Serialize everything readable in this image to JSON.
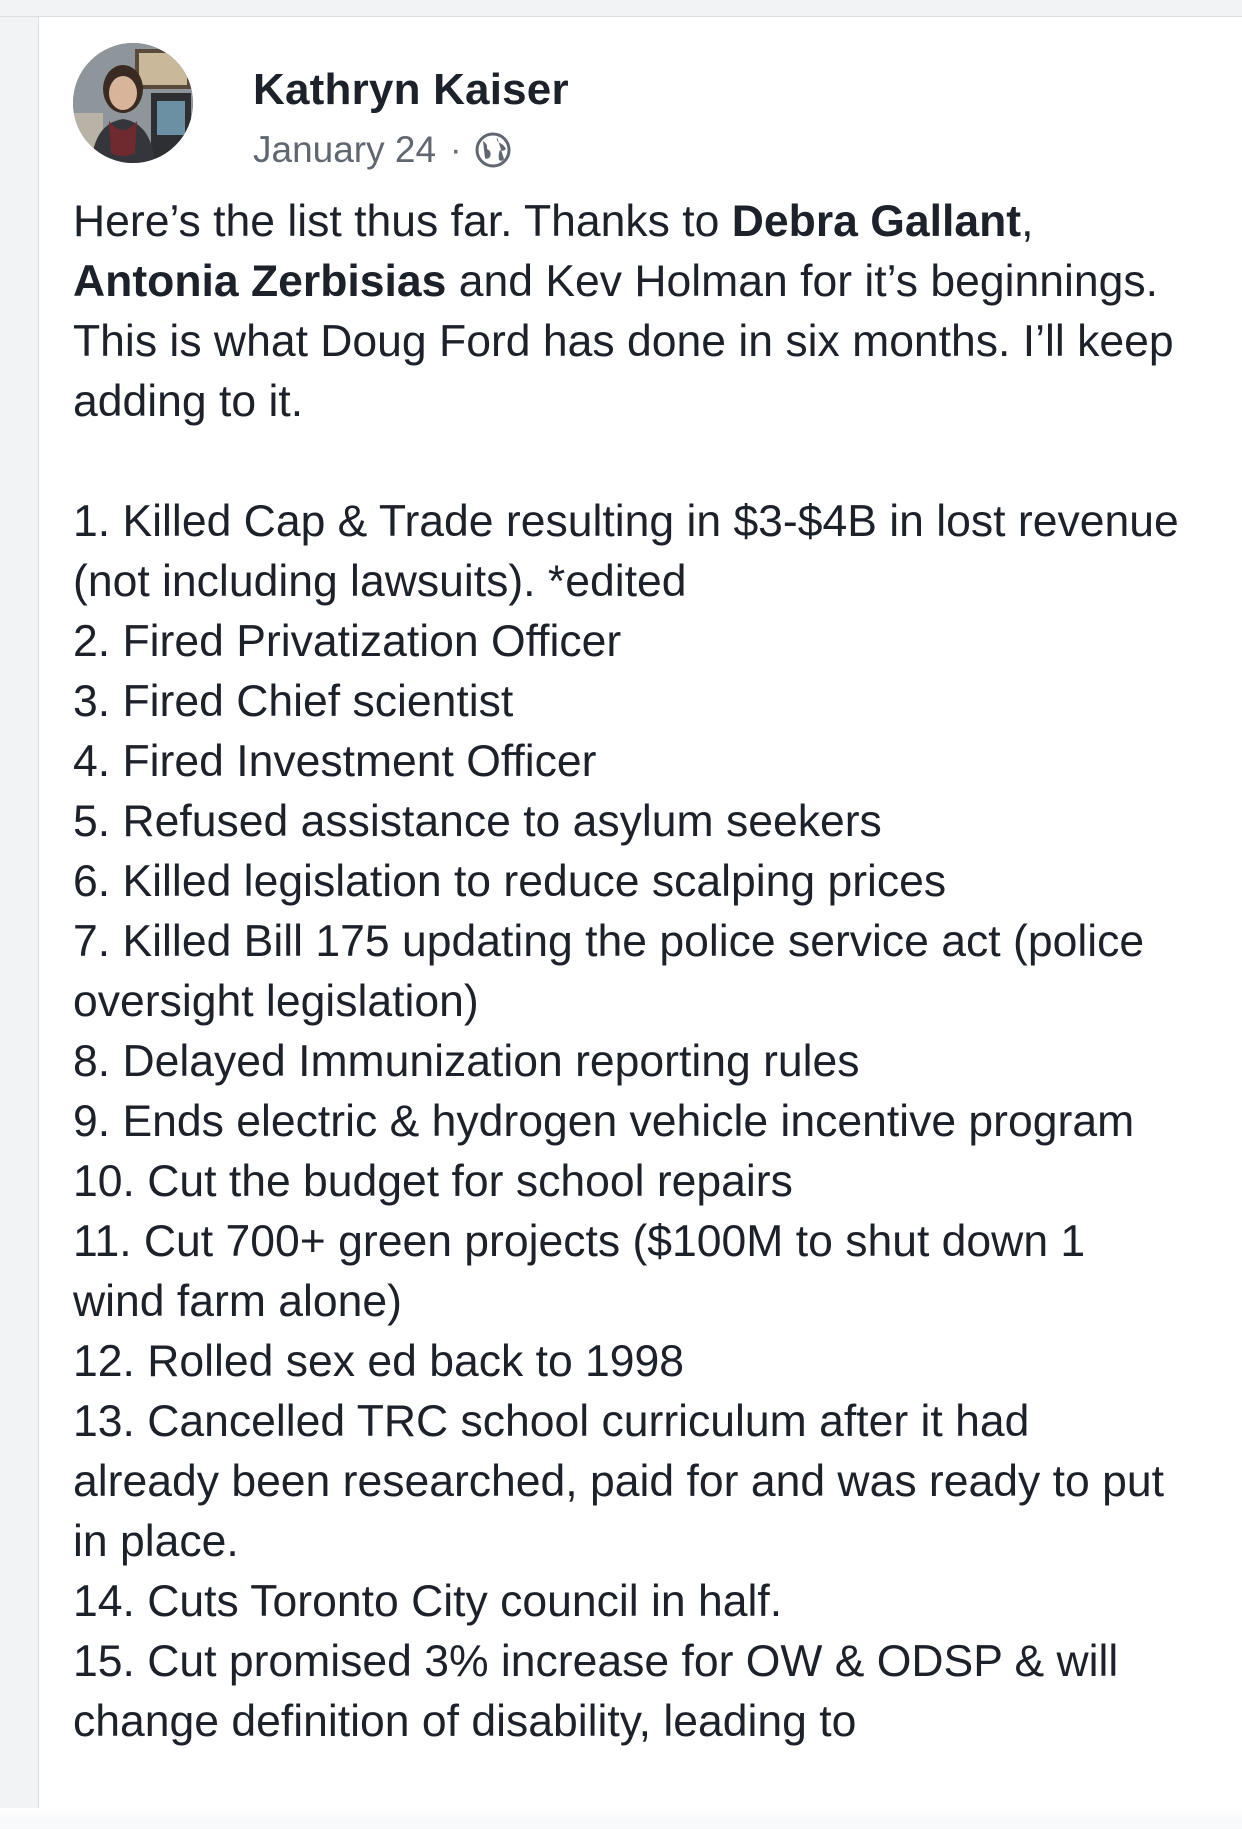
{
  "post": {
    "author": "Kathryn Kaiser",
    "date": "January 24",
    "separator": "·",
    "privacy_icon": "globe-icon",
    "intro": {
      "t1": "Here’s the list thus far.  Thanks to ",
      "name1": "Debra Gallant",
      "t2": ", ",
      "name2": "Antonia Zerbisias",
      "t3": " and Kev Holman for it’s beginnings. This is what Doug Ford has done in six months. I’ll keep adding to it."
    },
    "items": [
      "1. Killed Cap & Trade resulting in $3-$4B in lost revenue (not including lawsuits). *edited",
      "2. Fired Privatization Officer",
      "3. Fired Chief scientist",
      "4. Fired Investment Officer",
      "5. Refused assistance to asylum seekers",
      "6. Killed legislation to reduce scalping prices",
      "7. Killed Bill 175 updating the police service act (police oversight legislation)",
      "8. Delayed Immunization reporting rules",
      "9. Ends electric & hydrogen vehicle incentive program",
      "10. Cut the budget for school repairs",
      "11. Cut 700+ green projects ($100M to shut down 1 wind farm alone)",
      "12. Rolled sex ed back to 1998",
      "13. Cancelled TRC school curriculum after it had already been researched, paid for and was ready to put in place.",
      "14. Cuts Toronto City council in half.",
      "15. Cut promised 3% increase for OW & ODSP & will change definition of disability, leading to"
    ]
  },
  "colors": {
    "text": "#1d2129",
    "meta": "#606770",
    "background": "#ffffff",
    "border": "#dadde1"
  }
}
